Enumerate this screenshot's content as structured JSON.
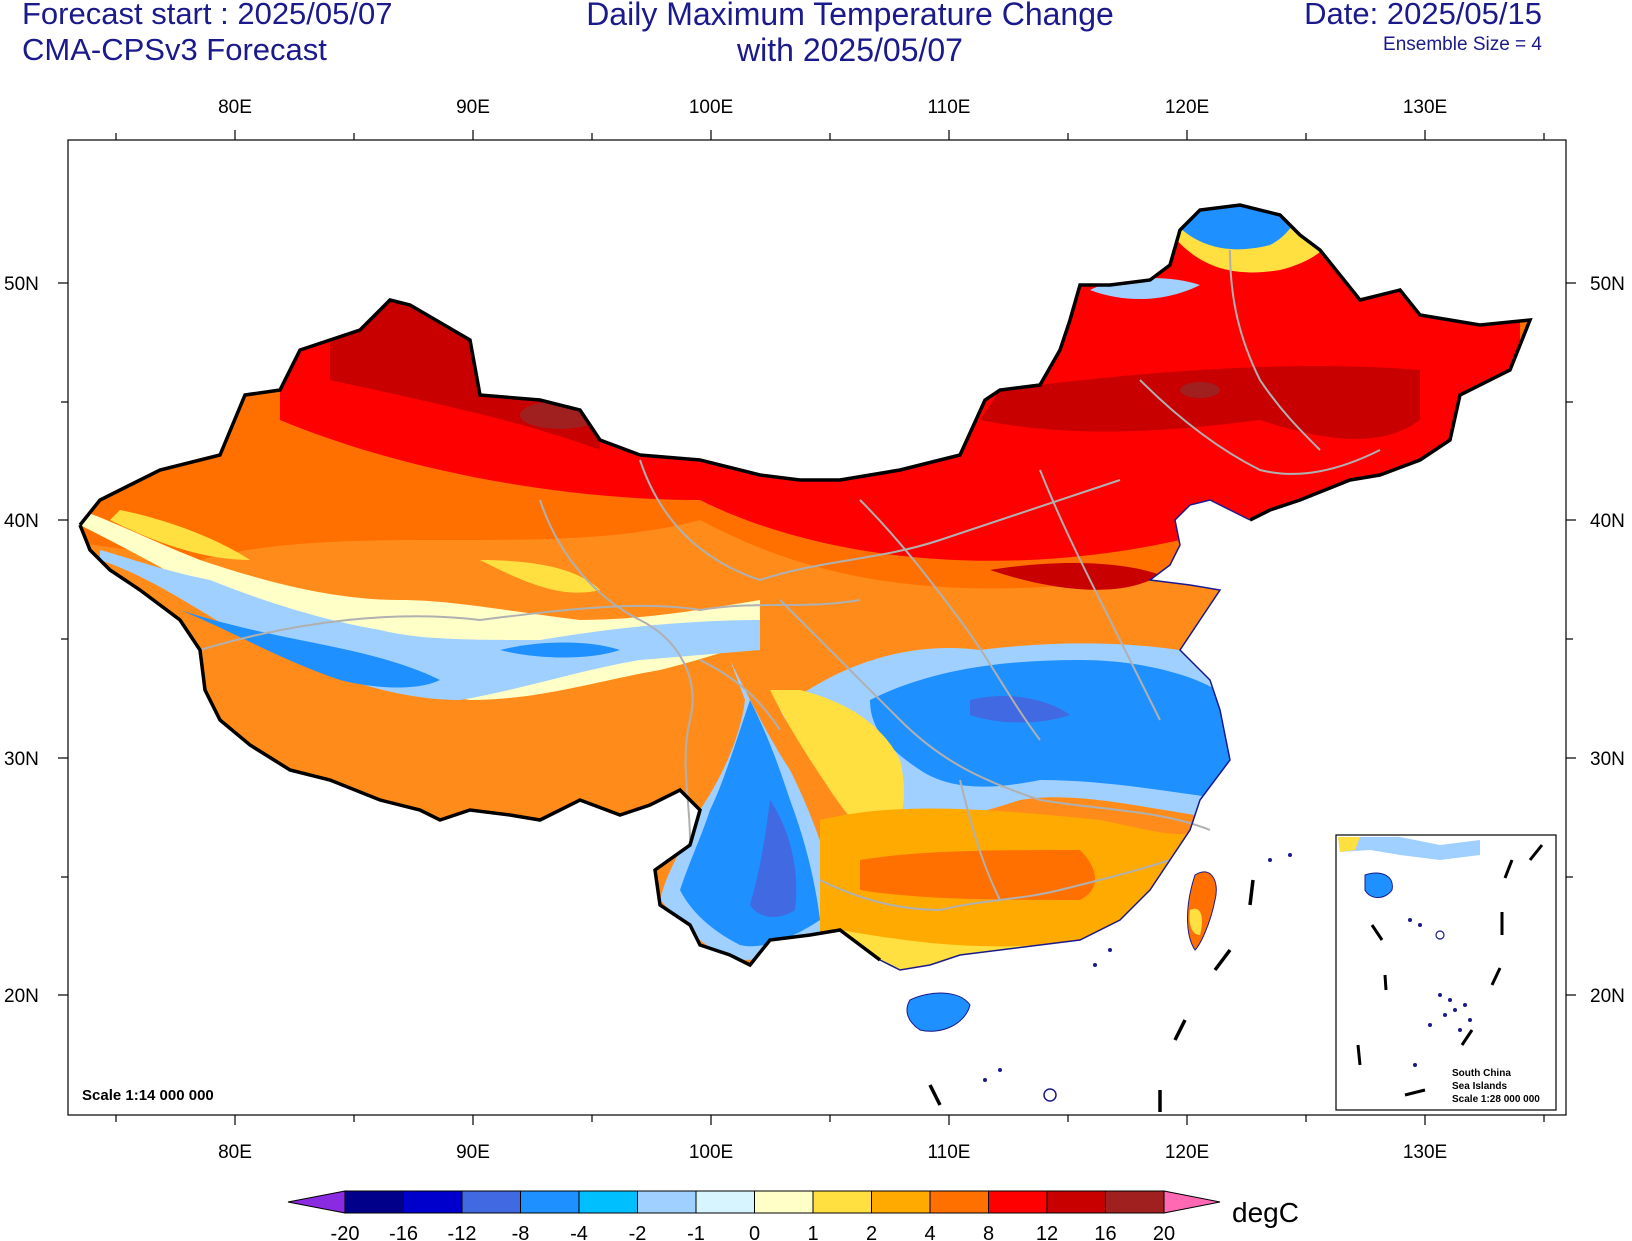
{
  "header": {
    "forecast_start": "Forecast start : 2025/05/07",
    "model": "CMA-CPSv3 Forecast",
    "title_line1": "Daily Maximum Temperature Change",
    "title_line2": "with 2025/05/07",
    "date": "Date: 2025/05/15",
    "ensemble": "Ensemble Size = 4"
  },
  "map": {
    "lon_labels": [
      "80E",
      "90E",
      "100E",
      "110E",
      "120E",
      "130E"
    ],
    "lat_labels": [
      "50N",
      "40N",
      "30N",
      "20N"
    ],
    "scale_label": "Scale 1:14 000 000",
    "inset": {
      "line1": "South China",
      "line2": "Sea Islands",
      "line3": "Scale 1:28 000 000"
    }
  },
  "colorbar": {
    "unit": "degC",
    "ticks": [
      "-20",
      "-16",
      "-12",
      "-8",
      "-4",
      "-2",
      "-1",
      "0",
      "1",
      "2",
      "4",
      "8",
      "12",
      "16",
      "20"
    ],
    "colors": [
      "#8a2be2",
      "#00008b",
      "#0000cd",
      "#4169e1",
      "#1e90ff",
      "#00bfff",
      "#a0d0ff",
      "#d6f5ff",
      "#ffffc8",
      "#ffe040",
      "#ffaa00",
      "#ff7000",
      "#ff0000",
      "#c80000",
      "#a02020",
      "#ff69b4"
    ]
  }
}
